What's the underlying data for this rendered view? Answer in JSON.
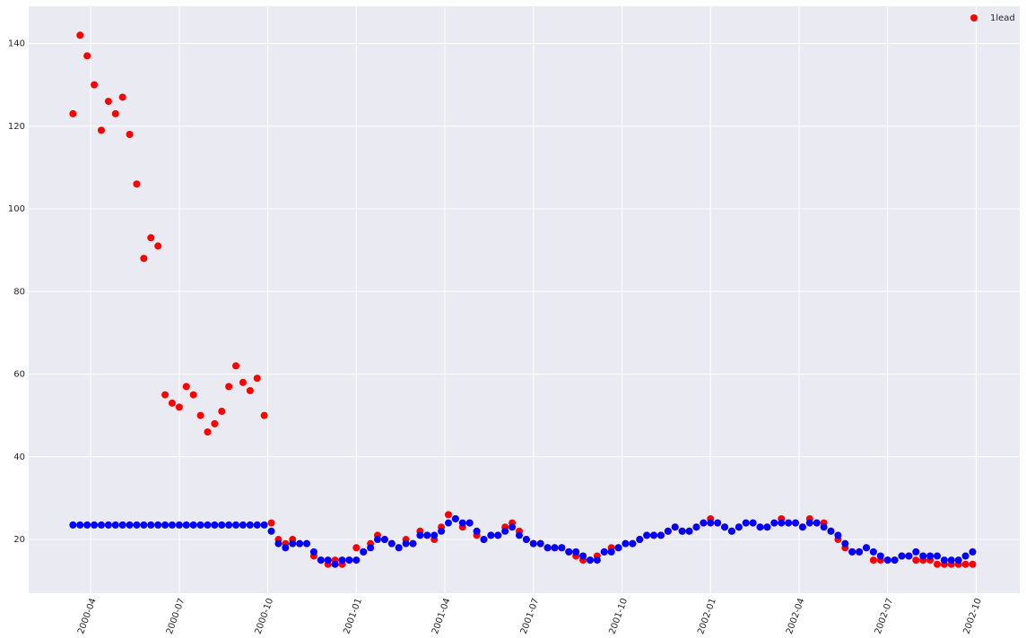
{
  "chart_data": {
    "type": "scatter",
    "x": [
      2000.2,
      2000.22,
      2000.24,
      2000.26,
      2000.28,
      2000.3,
      2000.32,
      2000.34,
      2000.36,
      2000.38,
      2000.4,
      2000.42,
      2000.44,
      2000.46,
      2000.48,
      2000.5,
      2000.52,
      2000.54,
      2000.56,
      2000.58,
      2000.6,
      2000.62,
      2000.64,
      2000.66,
      2000.68,
      2000.7,
      2000.72,
      2000.74,
      2000.76,
      2000.78,
      2000.8,
      2000.82,
      2000.84,
      2000.86,
      2000.88,
      2000.9,
      2000.92,
      2000.94,
      2000.96,
      2000.98,
      2001.0,
      2001.02,
      2001.04,
      2001.06,
      2001.08,
      2001.1,
      2001.12,
      2001.14,
      2001.16,
      2001.18,
      2001.2,
      2001.22,
      2001.24,
      2001.26,
      2001.28,
      2001.3,
      2001.32,
      2001.34,
      2001.36,
      2001.38,
      2001.4,
      2001.42,
      2001.44,
      2001.46,
      2001.48,
      2001.5,
      2001.52,
      2001.54,
      2001.56,
      2001.58,
      2001.6,
      2001.62,
      2001.64,
      2001.66,
      2001.68,
      2001.7,
      2001.72,
      2001.74,
      2001.76,
      2001.78,
      2001.8,
      2001.82,
      2001.84,
      2001.86,
      2001.88,
      2001.9,
      2001.92,
      2001.94,
      2001.96,
      2001.98,
      2002.0,
      2002.02,
      2002.04,
      2002.06,
      2002.08,
      2002.1,
      2002.12,
      2002.14,
      2002.16,
      2002.18,
      2002.2,
      2002.22,
      2002.24,
      2002.26,
      2002.28,
      2002.3,
      2002.32,
      2002.34,
      2002.36,
      2002.38,
      2002.4,
      2002.42,
      2002.44,
      2002.46,
      2002.48,
      2002.5,
      2002.52,
      2002.54,
      2002.56,
      2002.58,
      2002.6,
      2002.62,
      2002.64,
      2002.66,
      2002.68,
      2002.7,
      2002.72,
      2002.74
    ],
    "series": [
      {
        "name": "1lead",
        "color": "#ff0000",
        "values": [
          123,
          142,
          137,
          130,
          119,
          126,
          123,
          127,
          118,
          106,
          88,
          93,
          91,
          55,
          53,
          52,
          57,
          55,
          50,
          46,
          48,
          51,
          57,
          62,
          58,
          56,
          59,
          50,
          24,
          20,
          19,
          20,
          19,
          19,
          16,
          15,
          14,
          15,
          14,
          15,
          18,
          17,
          19,
          21,
          20,
          19,
          18,
          20,
          19,
          22,
          21,
          20,
          23,
          26,
          25,
          23,
          24,
          21,
          20,
          21,
          21,
          23,
          24,
          22,
          20,
          19,
          19,
          18,
          18,
          18,
          17,
          16,
          15,
          15,
          16,
          17,
          18,
          18,
          19,
          19,
          20,
          21,
          21,
          21,
          22,
          23,
          22,
          22,
          23,
          24,
          25,
          24,
          23,
          22,
          23,
          24,
          24,
          23,
          23,
          24,
          25,
          24,
          24,
          23,
          25,
          24,
          24,
          22,
          20,
          18,
          17,
          17,
          18,
          15,
          15,
          15,
          15,
          16,
          16,
          15,
          15,
          15,
          14,
          14,
          14,
          14,
          14,
          14
        ]
      },
      {
        "color": "#0000ff",
        "values": [
          23.5,
          23.5,
          23.5,
          23.5,
          23.5,
          23.5,
          23.5,
          23.5,
          23.5,
          23.5,
          23.5,
          23.5,
          23.5,
          23.5,
          23.5,
          23.5,
          23.5,
          23.5,
          23.5,
          23.5,
          23.5,
          23.5,
          23.5,
          23.5,
          23.5,
          23.5,
          23.5,
          23.5,
          22,
          19,
          18,
          19,
          19,
          19,
          17,
          15,
          15,
          14,
          15,
          15,
          15,
          17,
          18,
          20,
          20,
          19,
          18,
          19,
          19,
          21,
          21,
          21,
          22,
          24,
          25,
          24,
          24,
          22,
          20,
          21,
          21,
          22,
          23,
          21,
          20,
          19,
          19,
          18,
          18,
          18,
          17,
          17,
          16,
          15,
          15,
          17,
          17,
          18,
          19,
          19,
          20,
          21,
          21,
          21,
          22,
          23,
          22,
          22,
          23,
          24,
          24,
          24,
          23,
          22,
          23,
          24,
          24,
          23,
          23,
          24,
          24,
          24,
          24,
          23,
          24,
          24,
          23,
          22,
          21,
          19,
          17,
          17,
          18,
          17,
          16,
          15,
          15,
          16,
          16,
          17,
          16,
          16,
          16,
          15,
          15,
          15,
          16,
          17
        ]
      }
    ],
    "xlim": [
      2000.075,
      2002.873
    ],
    "xticks": [
      {
        "value": 2000.25,
        "label": "2000-04"
      },
      {
        "value": 2000.5,
        "label": "2000-07"
      },
      {
        "value": 2000.75,
        "label": "2000-10"
      },
      {
        "value": 2001.0,
        "label": "2001-01"
      },
      {
        "value": 2001.25,
        "label": "2001-04"
      },
      {
        "value": 2001.5,
        "label": "2001-07"
      },
      {
        "value": 2001.75,
        "label": "2001-10"
      },
      {
        "value": 2002.0,
        "label": "2002-01"
      },
      {
        "value": 2002.25,
        "label": "2002-04"
      },
      {
        "value": 2002.5,
        "label": "2002-07"
      },
      {
        "value": 2002.75,
        "label": "2002-10"
      }
    ],
    "ylim": [
      7,
      149
    ],
    "yticks": [
      20,
      40,
      60,
      80,
      100,
      120,
      140
    ],
    "grid": true,
    "legend": "upper right"
  }
}
